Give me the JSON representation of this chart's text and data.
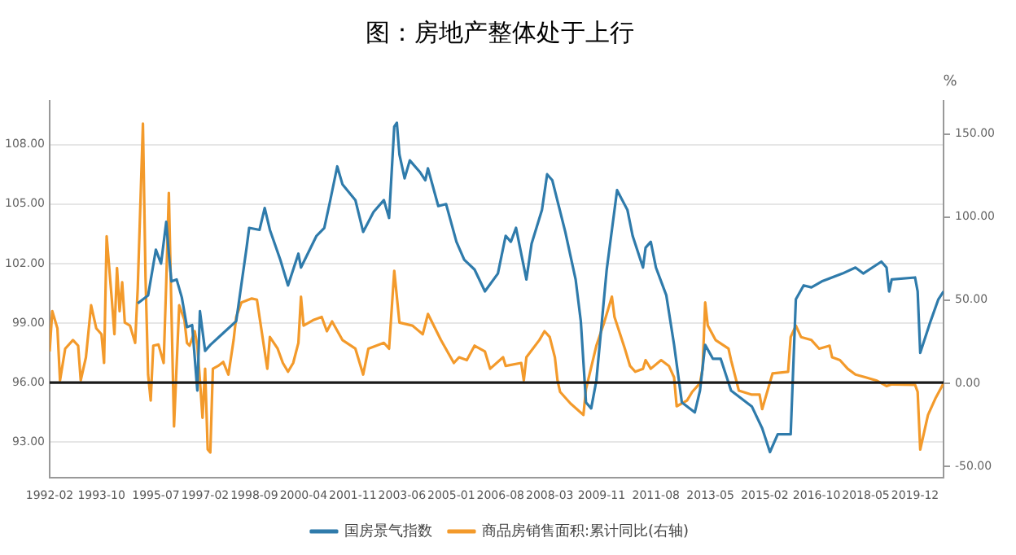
{
  "chart_data": {
    "type": "line",
    "title": "图：房地产整体处于上行",
    "y2label": "%",
    "xlim": [
      "1992-02",
      "2020-11"
    ],
    "xticks": [
      "1992-02",
      "1993-10",
      "1995-07",
      "1997-02",
      "1998-09",
      "2000-04",
      "2001-11",
      "2003-06",
      "2005-01",
      "2006-08",
      "2008-03",
      "2009-11",
      "2011-08",
      "2013-05",
      "2015-02",
      "2016-10",
      "2018-05",
      "2019-12"
    ],
    "ylim": [
      91.2,
      110.2
    ],
    "yticks": [
      {
        "value": 93,
        "label": "93.00"
      },
      {
        "value": 96,
        "label": "96.00"
      },
      {
        "value": 99,
        "label": "99.00"
      },
      {
        "value": 102,
        "label": "102.00"
      },
      {
        "value": 105,
        "label": "105.00"
      },
      {
        "value": 108,
        "label": "108.00"
      }
    ],
    "y2lim": [
      -57,
      170
    ],
    "y2ticks": [
      {
        "value": -50,
        "label": "-50.00"
      },
      {
        "value": 0,
        "label": "0.00"
      },
      {
        "value": 50,
        "label": "50.00"
      },
      {
        "value": 100,
        "label": "100.00"
      },
      {
        "value": 150,
        "label": "150.00"
      }
    ],
    "grid": "y",
    "legend": "bottom",
    "ref_lines": [
      {
        "axis": "y",
        "value": 96,
        "color": "#1a1a1a"
      }
    ],
    "series": [
      {
        "name": "国房景气指数",
        "color": "#2f7bab",
        "x": [
          "1994-12",
          "1995-04",
          "1995-07",
          "1995-09",
          "1995-11",
          "1995-12",
          "1996-01",
          "1996-03",
          "1996-05",
          "1996-07",
          "1996-09",
          "1996-11",
          "1996-12",
          "1997-02",
          "1997-04",
          "1997-09",
          "1998-02",
          "1998-06",
          "1998-07",
          "1998-11",
          "1999-01",
          "1999-03",
          "1999-07",
          "1999-10",
          "2000-02",
          "2000-03",
          "2000-09",
          "2000-12",
          "2001-02",
          "2001-05",
          "2001-07",
          "2001-12",
          "2002-03",
          "2002-07",
          "2002-11",
          "2003-01",
          "2003-03",
          "2003-04",
          "2003-05",
          "2003-07",
          "2003-09",
          "2004-01",
          "2004-03",
          "2004-04",
          "2004-08",
          "2004-11",
          "2005-03",
          "2005-06",
          "2005-10",
          "2006-02",
          "2006-07",
          "2006-10",
          "2006-12",
          "2007-02",
          "2007-06",
          "2007-08",
          "2007-12",
          "2008-02",
          "2008-04",
          "2008-09",
          "2009-01",
          "2009-03",
          "2009-05",
          "2009-07",
          "2009-09",
          "2010-01",
          "2010-05",
          "2010-09",
          "2010-11",
          "2011-03",
          "2011-04",
          "2011-06",
          "2011-08",
          "2011-12",
          "2012-03",
          "2012-06",
          "2012-11",
          "2013-01",
          "2013-03",
          "2013-06",
          "2013-09",
          "2014-01",
          "2014-09",
          "2015-01",
          "2015-04",
          "2015-07",
          "2015-12",
          "2016-02",
          "2016-05",
          "2016-08",
          "2016-12",
          "2017-08",
          "2018-01",
          "2018-04",
          "2018-11",
          "2019-01",
          "2019-02",
          "2019-03",
          "2019-12",
          "2020-01",
          "2020-02",
          "2020-06",
          "2020-09",
          "2020-11"
        ],
        "values": [
          100.0,
          100.4,
          102.7,
          102.0,
          104.1,
          102.5,
          101.1,
          101.2,
          100.3,
          98.8,
          98.9,
          95.6,
          99.6,
          97.6,
          97.9,
          98.5,
          99.1,
          102.8,
          103.8,
          103.7,
          104.8,
          103.7,
          102.2,
          100.9,
          102.5,
          101.8,
          103.4,
          103.8,
          105.0,
          106.9,
          106.0,
          105.2,
          103.6,
          104.6,
          105.2,
          104.3,
          108.9,
          109.1,
          107.5,
          106.3,
          107.2,
          106.6,
          106.2,
          106.8,
          104.9,
          105.0,
          103.1,
          102.2,
          101.7,
          100.6,
          101.5,
          103.4,
          103.1,
          103.8,
          101.2,
          103.0,
          104.7,
          106.5,
          106.2,
          103.6,
          101.2,
          99.1,
          95.0,
          94.7,
          96.1,
          101.7,
          105.7,
          104.7,
          103.4,
          101.8,
          102.8,
          103.1,
          101.8,
          100.4,
          97.9,
          95.0,
          94.5,
          95.6,
          97.9,
          97.2,
          97.2,
          95.6,
          94.8,
          93.7,
          92.5,
          93.4,
          93.4,
          100.2,
          100.9,
          100.8,
          101.1,
          101.5,
          101.8,
          101.5,
          102.1,
          101.8,
          100.6,
          101.2,
          101.3,
          100.6,
          97.5,
          99.1,
          100.2,
          100.6
        ]
      },
      {
        "name": "商品房销售面积:累计同比(右轴)",
        "color": "#f39a2b",
        "axis": "y2",
        "x": [
          "1992-02",
          "1992-03",
          "1992-05",
          "1992-06",
          "1992-08",
          "1992-11",
          "1993-01",
          "1993-02",
          "1993-04",
          "1993-06",
          "1993-08",
          "1993-10",
          "1993-11",
          "1993-12",
          "1994-02",
          "1994-03",
          "1994-04",
          "1994-05",
          "1994-06",
          "1994-07",
          "1994-09",
          "1994-11",
          "1994-12",
          "1995-02",
          "1995-03",
          "1995-04",
          "1995-05",
          "1995-06",
          "1995-08",
          "1995-10",
          "1995-11",
          "1995-12",
          "1996-02",
          "1996-04",
          "1996-06",
          "1996-07",
          "1996-08",
          "1996-10",
          "1996-11",
          "1996-12",
          "1997-01",
          "1997-02",
          "1997-03",
          "1997-04",
          "1997-05",
          "1997-07",
          "1997-09",
          "1997-11",
          "1998-01",
          "1998-02",
          "1998-04",
          "1998-08",
          "1998-10",
          "1998-12",
          "1999-02",
          "1999-03",
          "1999-06",
          "1999-08",
          "1999-10",
          "1999-12",
          "2000-02",
          "2000-03",
          "2000-04",
          "2000-08",
          "2000-11",
          "2001-01",
          "2001-03",
          "2001-07",
          "2001-12",
          "2002-03",
          "2002-05",
          "2002-11",
          "2003-01",
          "2003-03",
          "2003-05",
          "2003-10",
          "2004-02",
          "2004-04",
          "2004-09",
          "2005-02",
          "2005-04",
          "2005-07",
          "2005-10",
          "2006-02",
          "2006-04",
          "2006-09",
          "2006-10",
          "2007-04",
          "2007-05",
          "2007-06",
          "2007-11",
          "2008-01",
          "2008-03",
          "2008-05",
          "2008-06",
          "2008-07",
          "2008-11",
          "2009-04",
          "2009-05",
          "2009-09",
          "2009-12",
          "2010-03",
          "2010-04",
          "2010-08",
          "2010-10",
          "2010-12",
          "2011-03",
          "2011-04",
          "2011-06",
          "2011-10",
          "2012-01",
          "2012-03",
          "2012-04",
          "2012-08",
          "2012-10",
          "2013-01",
          "2013-02",
          "2013-03",
          "2013-04",
          "2013-07",
          "2013-12",
          "2014-01",
          "2014-04",
          "2014-09",
          "2014-12",
          "2015-01",
          "2015-05",
          "2015-11",
          "2015-12",
          "2016-02",
          "2016-04",
          "2016-08",
          "2016-11",
          "2017-03",
          "2017-04",
          "2017-07",
          "2017-10",
          "2018-01",
          "2018-05",
          "2018-09",
          "2019-01",
          "2019-03",
          "2019-12",
          "2020-01",
          "2020-02",
          "2020-05",
          "2020-08",
          "2020-11"
        ],
        "values": [
          19.1,
          43.4,
          33.0,
          1.7,
          20.8,
          26.0,
          22.6,
          1.7,
          15.6,
          46.9,
          33.0,
          29.5,
          12.2,
          88.5,
          50.3,
          29.5,
          69.4,
          43.4,
          60.8,
          36.5,
          34.7,
          24.3,
          57.3,
          156.3,
          64.2,
          5.2,
          -10.4,
          22.6,
          23.3,
          12.2,
          60.8,
          114.6,
          -26.0,
          46.9,
          38.2,
          24.3,
          22.6,
          31.3,
          22.6,
          1.7,
          -20.8,
          8.7,
          -39.9,
          -41.7,
          8.7,
          10.4,
          12.8,
          5.2,
          26.0,
          39.9,
          48.6,
          51.0,
          50.3,
          29.5,
          8.7,
          27.8,
          20.8,
          12.2,
          6.9,
          12.2,
          24.3,
          52.1,
          34.7,
          38.2,
          39.9,
          31.3,
          37.2,
          26.0,
          20.8,
          5.2,
          20.8,
          24.3,
          20.8,
          67.7,
          36.5,
          34.7,
          29.5,
          41.7,
          26.0,
          12.2,
          15.6,
          13.9,
          22.6,
          19.1,
          8.7,
          15.6,
          10.4,
          12.2,
          1.7,
          15.6,
          26.0,
          31.3,
          27.8,
          15.6,
          1.7,
          -5.2,
          -12.2,
          -19.1,
          -3.5,
          22.6,
          36.5,
          52.1,
          39.9,
          20.8,
          10.4,
          6.9,
          8.7,
          13.9,
          8.7,
          13.9,
          10.4,
          3.5,
          -13.9,
          -10.4,
          -5.2,
          0,
          8.7,
          48.6,
          34.7,
          26.0,
          20.8,
          13.9,
          -4.5,
          -6.9,
          -6.9,
          -15.6,
          5.9,
          6.9,
          27.8,
          34.7,
          27.8,
          26.0,
          20.8,
          22.6,
          15.6,
          13.9,
          8.7,
          5.2,
          3.5,
          1.7,
          -1.7,
          -0.7,
          -1.0,
          -5.2,
          -39.9,
          -19.1,
          -8.7,
          0
        ]
      }
    ]
  }
}
